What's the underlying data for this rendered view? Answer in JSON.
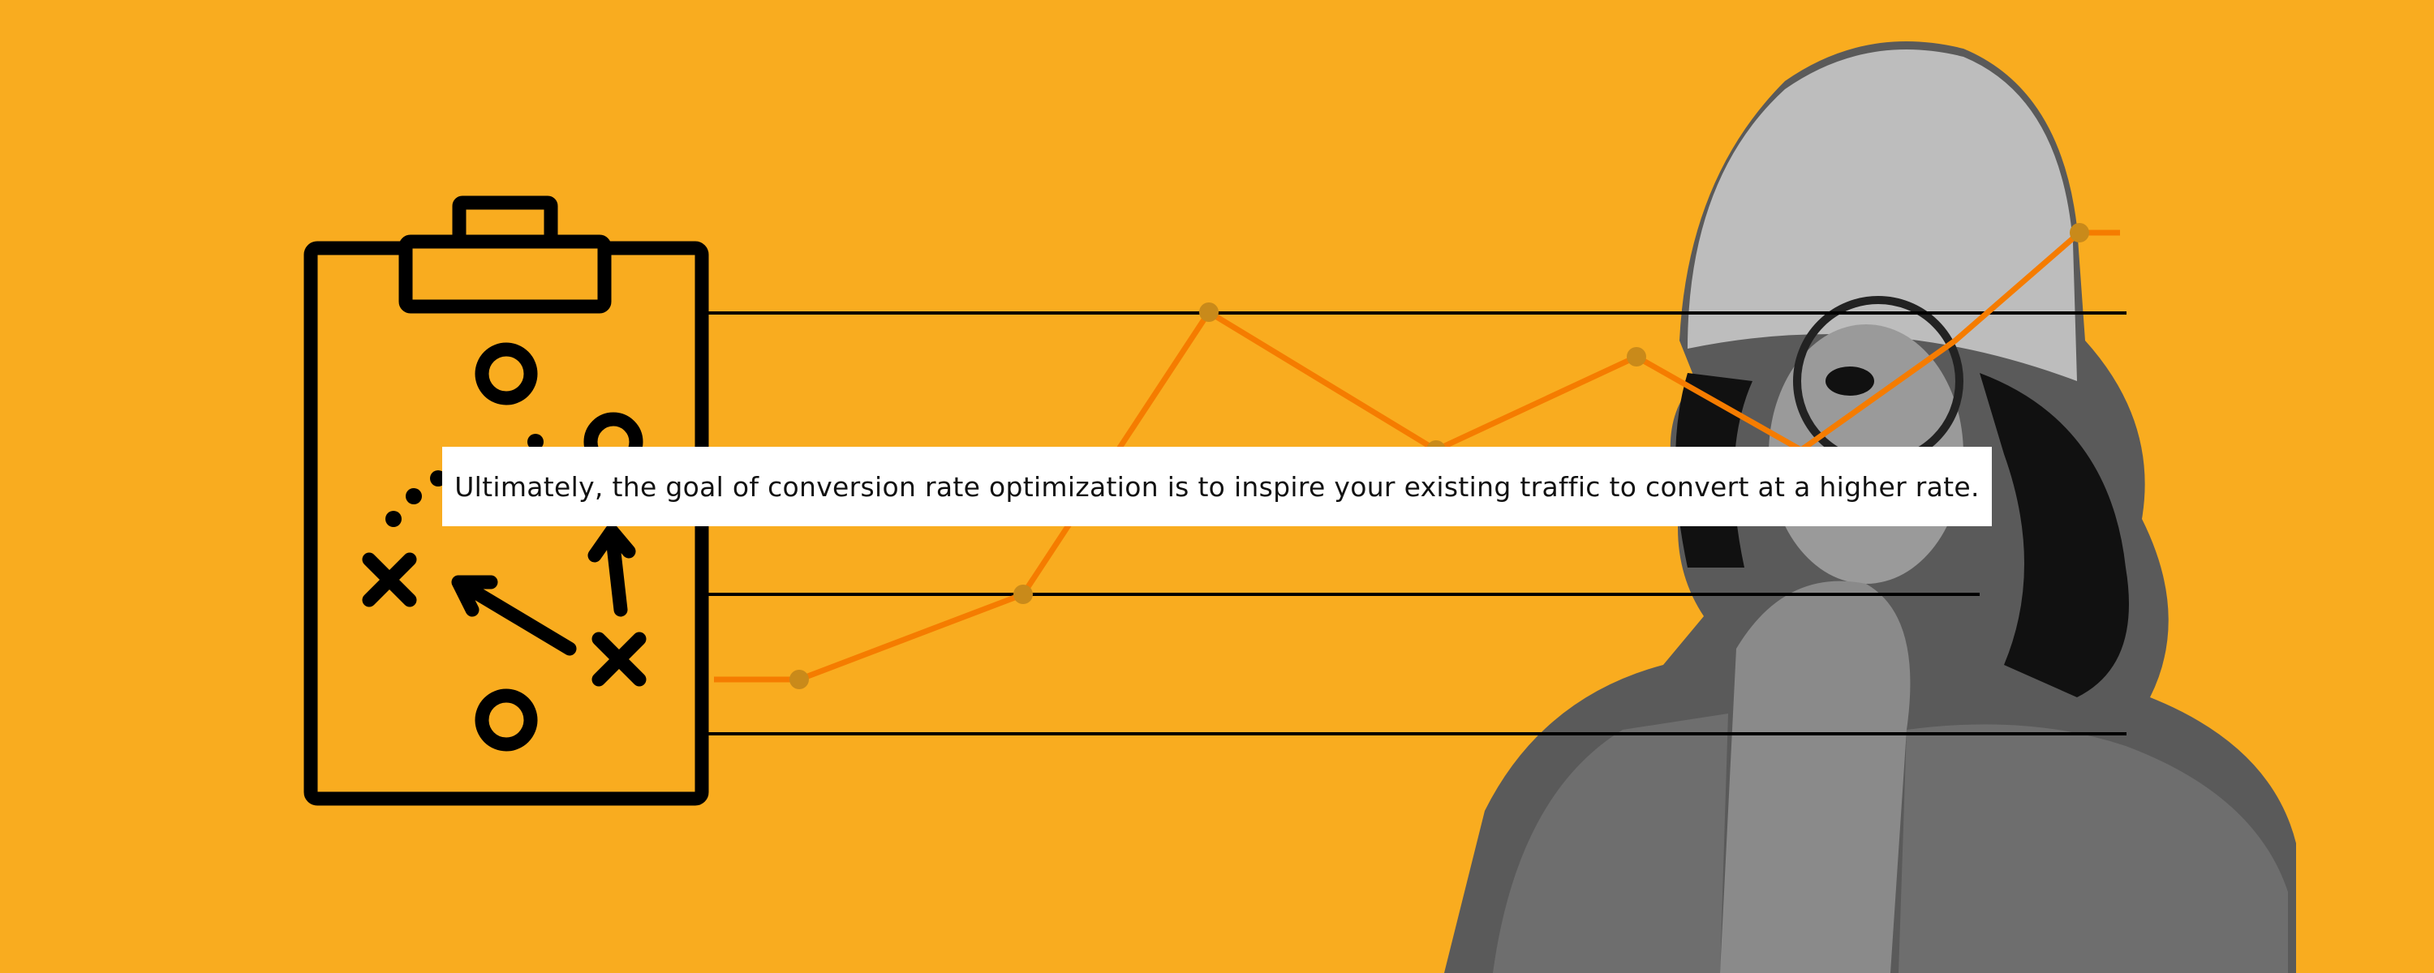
{
  "quote": {
    "text": "Ultimately, the goal of conversion rate optimization is to inspire your existing traffic to convert at a higher rate."
  },
  "colors": {
    "background": "#F9AC1F",
    "trend_line": "#F57C00",
    "trend_point": "#C98A1A",
    "ink": "#000000"
  },
  "illustration": {
    "left_icon": "clipboard-play-diagram-icon",
    "right_image": "person-with-magnifying-glass"
  }
}
